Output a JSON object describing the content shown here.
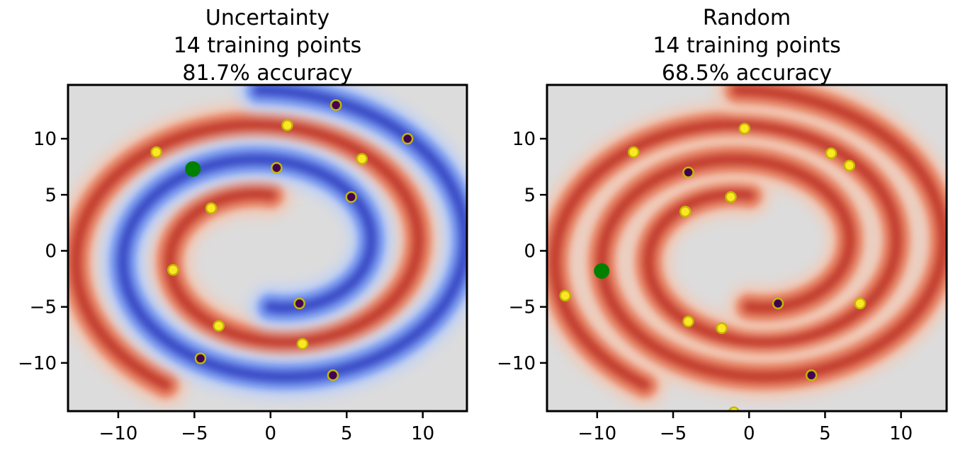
{
  "chart_data": [
    {
      "type": "scatter",
      "title": [
        "Uncertainty",
        "14 training points",
        "81.7% accuracy"
      ],
      "xlim": [
        -13.3,
        12.9
      ],
      "ylim": [
        -14.3,
        14.8
      ],
      "xticks": [
        {
          "value": -10,
          "label": "−10"
        },
        {
          "value": -5,
          "label": "−5"
        },
        0,
        5,
        10
      ],
      "yticks": [
        {
          "value": -10,
          "label": "−10"
        },
        {
          "value": -5,
          "label": "−5"
        },
        0,
        5,
        10
      ],
      "band_colors": [
        "red",
        "blue"
      ],
      "series": [
        {
          "color": "#fde725",
          "edgecolor": "#c2b800",
          "x": [
            -7.5,
            1.1,
            6.0,
            -3.9,
            -6.4,
            -3.4,
            2.1
          ],
          "y": [
            8.8,
            11.2,
            8.2,
            3.8,
            -1.7,
            -6.7,
            -8.3
          ]
        },
        {
          "color": "#440154",
          "edgecolor": "#c2b800",
          "x": [
            4.3,
            9.0,
            0.4,
            5.3,
            1.9,
            -4.6,
            4.1
          ],
          "y": [
            13.0,
            10.0,
            7.4,
            4.8,
            -4.7,
            -9.6,
            -11.1
          ]
        },
        {
          "color": "#008000",
          "x": [
            -5.1
          ],
          "y": [
            7.3
          ]
        }
      ]
    },
    {
      "type": "scatter",
      "title": [
        "Random",
        "14 training points",
        "68.5% accuracy"
      ],
      "xlim": [
        -13.3,
        13.0
      ],
      "ylim": [
        -14.3,
        14.8
      ],
      "xticks": [
        {
          "value": -10,
          "label": "−10"
        },
        {
          "value": -5,
          "label": "−5"
        },
        0,
        5,
        10
      ],
      "yticks": [
        {
          "value": -10,
          "label": "−10"
        },
        {
          "value": -5,
          "label": "−5"
        },
        0,
        5,
        10
      ],
      "band_colors": [
        "red",
        "red"
      ],
      "series": [
        {
          "color": "#fde725",
          "edgecolor": "#c2b800",
          "x": [
            -7.6,
            -0.3,
            5.4,
            6.6,
            -1.2,
            -4.2,
            -12.1,
            -4.0,
            -1.8,
            7.3,
            -1.0
          ],
          "y": [
            8.8,
            10.9,
            8.7,
            7.6,
            4.8,
            3.5,
            -4.0,
            -6.3,
            -6.9,
            -4.7,
            -14.4
          ]
        },
        {
          "color": "#440154",
          "edgecolor": "#c2b800",
          "x": [
            -4.0,
            1.9,
            4.1
          ],
          "y": [
            7.0,
            -4.7,
            -11.1
          ]
        },
        {
          "color": "#008000",
          "x": [
            -9.7
          ],
          "y": [
            -1.8
          ]
        }
      ]
    }
  ]
}
